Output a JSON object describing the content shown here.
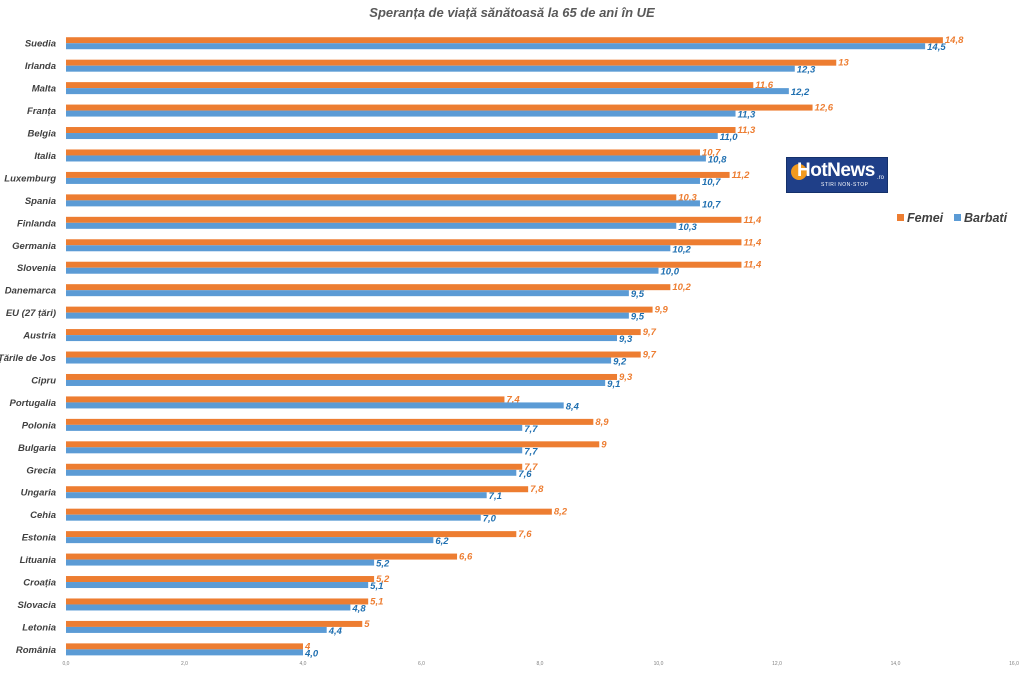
{
  "logo": {
    "text": "HotNews",
    "suffix": ".ro",
    "tagline": "STIRI NON-STOP"
  },
  "chart_data": {
    "type": "bar",
    "orientation": "horizontal",
    "title": "Speranța de viață sănătoasă la 65 de ani în UE",
    "categories": [
      "Suedia",
      "Irlanda",
      "Malta",
      "Franța",
      "Belgia",
      "Italia",
      "Luxemburg",
      "Spania",
      "Finlanda",
      "Germania",
      "Slovenia",
      "Danemarca",
      "EU (27 țări)",
      "Austria",
      "Țările de Jos",
      "Cipru",
      "Portugalia",
      "Polonia",
      "Bulgaria",
      "Grecia",
      "Ungaria",
      "Cehia",
      "Estonia",
      "Lituania",
      "Croația",
      "Slovacia",
      "Letonia",
      "România"
    ],
    "series": [
      {
        "name": "Femei",
        "color": "#ed7d31",
        "values": [
          14.8,
          13,
          11.6,
          12.6,
          11.3,
          10.7,
          11.2,
          10.3,
          11.4,
          11.4,
          11.4,
          10.2,
          9.9,
          9.7,
          9.7,
          9.3,
          7.4,
          8.9,
          9,
          7.7,
          7.8,
          8.2,
          7.6,
          6.6,
          5.2,
          5.1,
          5,
          4
        ],
        "labels": [
          "14,8",
          "13",
          "11,6",
          "12,6",
          "11,3",
          "10,7",
          "11,2",
          "10,3",
          "11,4",
          "11,4",
          "11,4",
          "10,2",
          "9,9",
          "9,7",
          "9,7",
          "9,3",
          "7,4",
          "8,9",
          "9",
          "7,7",
          "7,8",
          "8,2",
          "7,6",
          "6,6",
          "5,2",
          "5,1",
          "5",
          "4"
        ]
      },
      {
        "name": "Barbati",
        "color": "#5b9bd5",
        "label_color": "#1f6fb0",
        "values": [
          14.5,
          12.3,
          12.2,
          11.3,
          11.0,
          10.8,
          10.7,
          10.7,
          10.3,
          10.2,
          10.0,
          9.5,
          9.5,
          9.3,
          9.2,
          9.1,
          8.4,
          7.7,
          7.7,
          7.6,
          7.1,
          7.0,
          6.2,
          5.2,
          5.1,
          4.8,
          4.4,
          4.0
        ],
        "labels": [
          "14,5",
          "12,3",
          "12,2",
          "11,3",
          "11,0",
          "10,8",
          "10,7",
          "10,7",
          "10,3",
          "10,2",
          "10,0",
          "9,5",
          "9,5",
          "9,3",
          "9,2",
          "9,1",
          "8,4",
          "7,7",
          "7,7",
          "7,6",
          "7,1",
          "7,0",
          "6,2",
          "5,2",
          "5,1",
          "4,8",
          "4,4",
          "4,0"
        ]
      }
    ],
    "xlim": [
      0,
      16
    ],
    "xticks": [
      "0,0",
      "2,0",
      "4,0",
      "6,0",
      "8,0",
      "10,0",
      "12,0",
      "14,0",
      "16,0"
    ],
    "grid": false,
    "legend_position": "right"
  }
}
